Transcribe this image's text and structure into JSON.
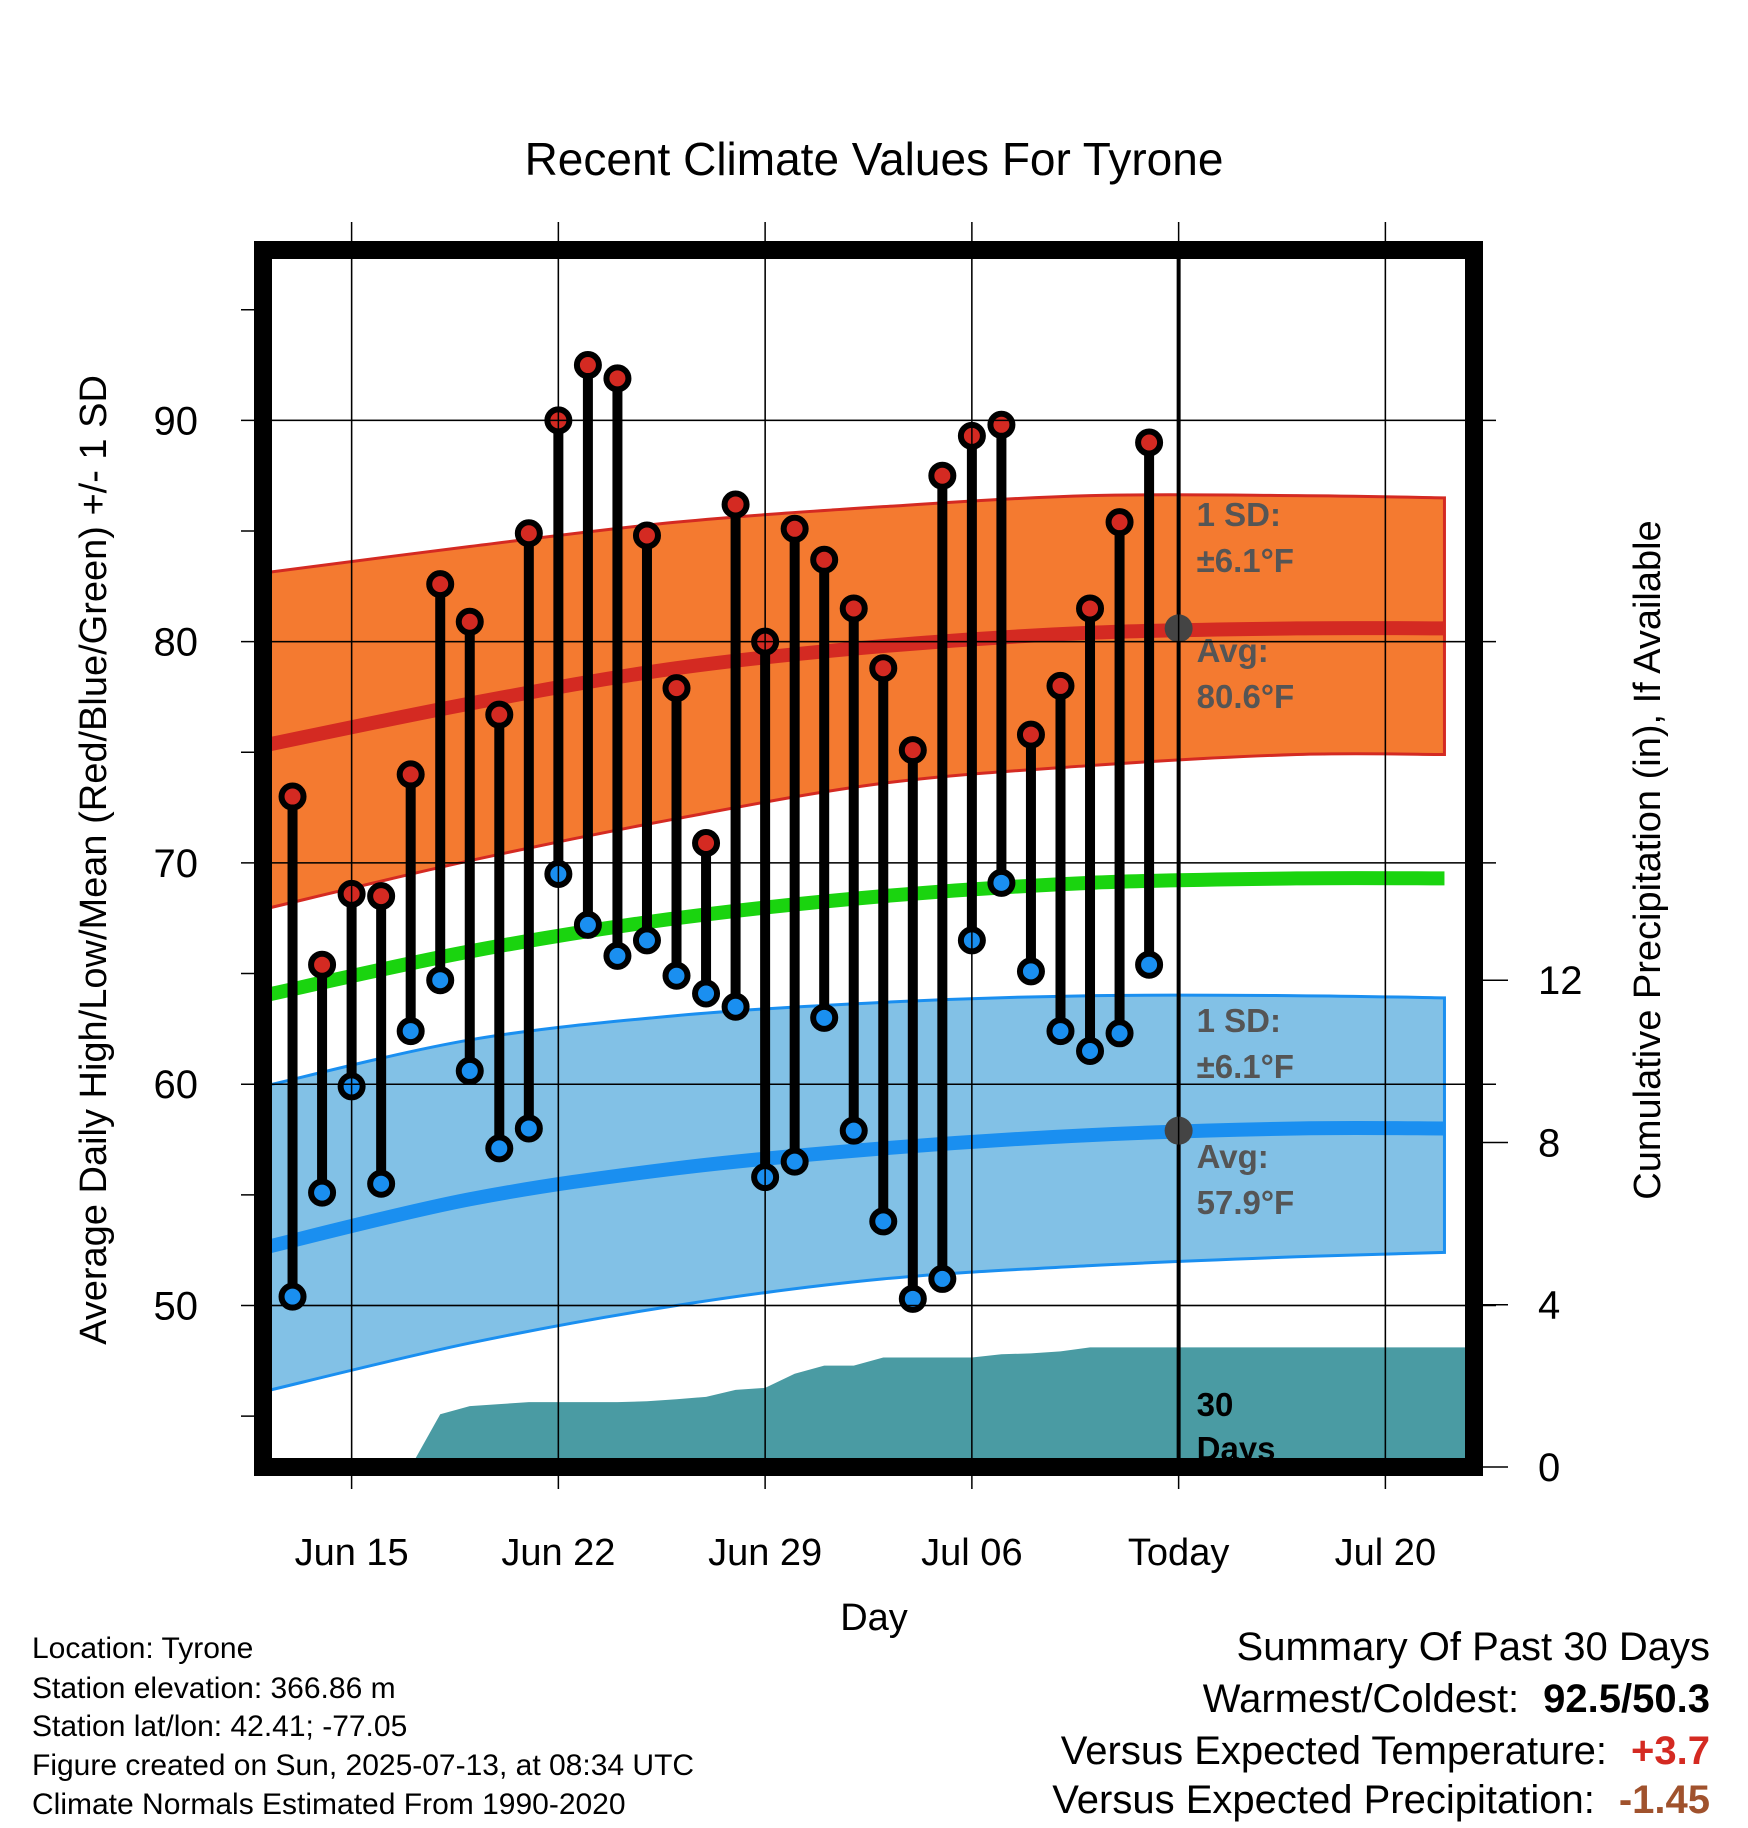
{
  "chart_data": {
    "type": "line",
    "title": "Recent Climate Values For Tyrone",
    "xlabel": "Day",
    "ylabel": "Average Daily High/Low/Mean (Red/Blue/Green) +/- 1 SD",
    "ylabel_right": "Cumulative Precipitation (in), If Available",
    "xlim": [
      "2025-06-12",
      "2025-07-23"
    ],
    "ylim": [
      42.7,
      97.7
    ],
    "ylim_right": [
      0,
      30
    ],
    "x_ticks": [
      {
        "date": "2025-06-15",
        "label": "Jun 15"
      },
      {
        "date": "2025-06-22",
        "label": "Jun 22"
      },
      {
        "date": "2025-06-29",
        "label": "Jun 29"
      },
      {
        "date": "2025-07-06",
        "label": "Jul 06"
      },
      {
        "date": "2025-07-13",
        "label": "Today"
      },
      {
        "date": "2025-07-20",
        "label": "Jul 20"
      }
    ],
    "y_ticks_left": [
      50,
      60,
      70,
      80,
      90
    ],
    "y_ticks_right": [
      0,
      4,
      8,
      12
    ],
    "grid": true,
    "today": "2025-07-13",
    "dates": [
      "2025-06-13",
      "2025-06-14",
      "2025-06-15",
      "2025-06-16",
      "2025-06-17",
      "2025-06-18",
      "2025-06-19",
      "2025-06-20",
      "2025-06-21",
      "2025-06-22",
      "2025-06-23",
      "2025-06-24",
      "2025-06-25",
      "2025-06-26",
      "2025-06-27",
      "2025-06-28",
      "2025-06-29",
      "2025-06-30",
      "2025-07-01",
      "2025-07-02",
      "2025-07-03",
      "2025-07-04",
      "2025-07-05",
      "2025-07-06",
      "2025-07-07",
      "2025-07-08",
      "2025-07-09",
      "2025-07-10",
      "2025-07-11",
      "2025-07-12"
    ],
    "daily_high": [
      73.0,
      65.4,
      68.6,
      68.5,
      74.0,
      82.6,
      80.9,
      76.7,
      84.9,
      90.0,
      92.5,
      91.9,
      84.8,
      77.9,
      70.9,
      86.2,
      80.0,
      85.1,
      83.7,
      81.5,
      78.8,
      75.1,
      87.5,
      89.3,
      89.8,
      75.8,
      78.0,
      81.5,
      85.4,
      89.0
    ],
    "daily_low": [
      50.4,
      55.1,
      59.9,
      55.5,
      62.4,
      64.7,
      60.6,
      57.1,
      58.0,
      69.5,
      67.2,
      65.8,
      66.5,
      64.9,
      64.1,
      63.5,
      55.8,
      56.5,
      63.0,
      57.9,
      53.8,
      50.3,
      51.2,
      66.5,
      69.1,
      65.1,
      62.4,
      61.5,
      62.3,
      65.4
    ],
    "normal_curve_dates": [
      "2025-06-12",
      "2025-06-19",
      "2025-06-26",
      "2025-07-03",
      "2025-07-10",
      "2025-07-17",
      "2025-07-22"
    ],
    "normal_high": [
      75.3,
      77.2,
      78.8,
      79.8,
      80.4,
      80.6,
      80.6
    ],
    "normal_high_upper": [
      83.1,
      84.3,
      85.4,
      86.1,
      86.6,
      86.6,
      86.5
    ],
    "normal_high_lower": [
      67.9,
      70.1,
      72.0,
      73.6,
      74.4,
      74.9,
      74.9
    ],
    "normal_mean": [
      64.0,
      66.0,
      67.5,
      68.5,
      69.1,
      69.3,
      69.3
    ],
    "normal_low": [
      52.6,
      54.8,
      56.2,
      57.1,
      57.7,
      58.0,
      58.0
    ],
    "normal_low_upper": [
      59.9,
      62.0,
      63.1,
      63.7,
      64.0,
      64.0,
      63.9
    ],
    "normal_low_lower": [
      46.1,
      48.3,
      50.0,
      51.2,
      51.8,
      52.2,
      52.4
    ],
    "precip_dates": [
      "2025-06-15",
      "2025-06-16",
      "2025-06-17",
      "2025-06-18",
      "2025-06-19",
      "2025-06-20",
      "2025-06-21",
      "2025-06-22",
      "2025-06-23",
      "2025-06-24",
      "2025-06-25",
      "2025-06-26",
      "2025-06-27",
      "2025-06-28",
      "2025-06-29",
      "2025-06-30",
      "2025-07-01",
      "2025-07-02",
      "2025-07-03",
      "2025-07-04",
      "2025-07-05",
      "2025-07-06",
      "2025-07-07",
      "2025-07-08",
      "2025-07-09",
      "2025-07-10",
      "2025-07-11",
      "2025-07-12",
      "2025-07-13",
      "2025-07-23"
    ],
    "cumulative_precip": [
      0,
      0,
      0,
      1.3,
      1.5,
      1.55,
      1.6,
      1.6,
      1.6,
      1.6,
      1.62,
      1.67,
      1.73,
      1.9,
      1.95,
      2.3,
      2.5,
      2.5,
      2.7,
      2.7,
      2.7,
      2.7,
      2.78,
      2.8,
      2.85,
      2.95,
      2.95,
      2.95,
      2.95,
      2.95
    ],
    "annotations": {
      "high_sd_label": "1 SD:",
      "high_sd_value": "±6.1°F",
      "high_avg_label": "Avg:",
      "high_avg_value": "80.6°F",
      "low_sd_label": "1 SD:",
      "low_sd_value": "±6.1°F",
      "low_avg_label": "Avg:",
      "low_avg_value": "57.9°F",
      "precip_window_line1": "30",
      "precip_window_line2": "Days"
    },
    "colors": {
      "high_band": "#f47a30",
      "high_line": "#d42a22",
      "mean_line": "#1ad40f",
      "low_band": "#82c1e6",
      "low_line": "#1a8ff0",
      "precip": "#4a9ba3",
      "high_marker": "#d42a22",
      "low_marker": "#1a8ff0",
      "annotation_text": "#555555"
    }
  },
  "info": {
    "location": "Location: Tyrone",
    "elevation": "Station elevation: 366.86 m",
    "latlon": "Station lat/lon: 42.41; -77.05",
    "created": "Figure created on Sun, 2025-07-13, at 08:34 UTC",
    "normals": "Climate Normals Estimated From 1990-2020"
  },
  "summary": {
    "title": "Summary Of Past 30 Days",
    "warmest_coldest_label": "Warmest/Coldest:",
    "warmest_coldest_value": "92.5/50.3",
    "temp_label": "Versus Expected Temperature:",
    "temp_value": "+3.7",
    "temp_color": "#d42a22",
    "precip_label": "Versus Expected Precipitation:",
    "precip_value": "-1.45",
    "precip_color": "#a0522d"
  }
}
